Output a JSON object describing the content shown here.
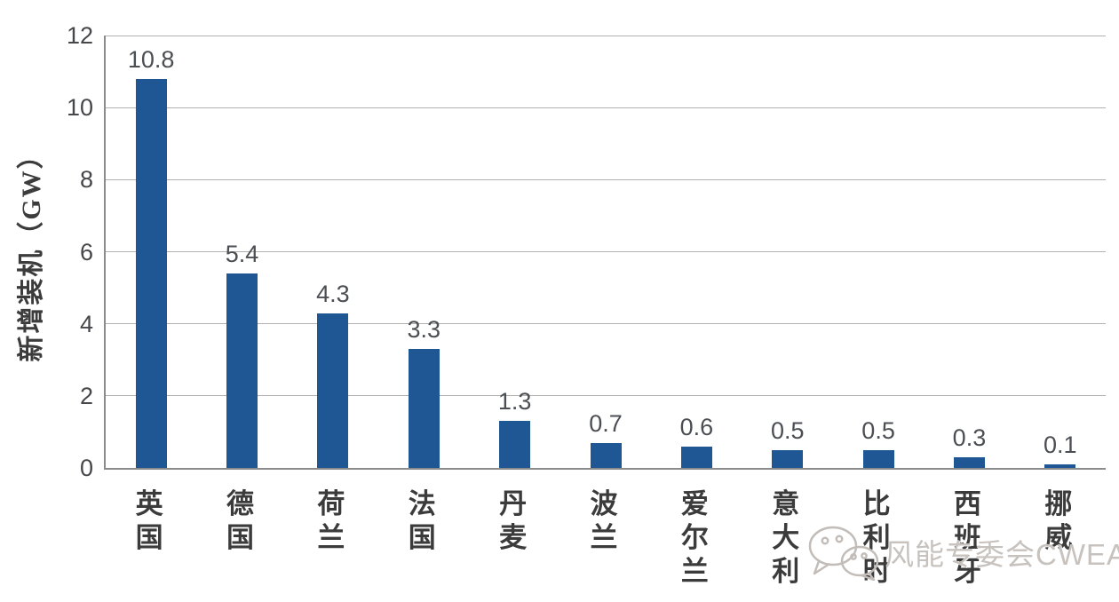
{
  "chart_data": {
    "type": "bar",
    "title": "",
    "xlabel": "",
    "ylabel": "新增装机（GW）",
    "ylim": [
      0,
      12
    ],
    "yticks": [
      0,
      2,
      4,
      6,
      8,
      10,
      12
    ],
    "grid": true,
    "legend": null,
    "categories": [
      "英国",
      "德国",
      "荷兰",
      "法国",
      "丹麦",
      "波兰",
      "爱尔兰",
      "意大利",
      "比利时",
      "西班牙",
      "挪威"
    ],
    "values": [
      10.8,
      5.4,
      4.3,
      3.3,
      1.3,
      0.7,
      0.6,
      0.5,
      0.5,
      0.3,
      0.1
    ],
    "value_labels": [
      "10.8",
      "5.4",
      "4.3",
      "3.3",
      "1.3",
      "0.7",
      "0.6",
      "0.5",
      "0.5",
      "0.3",
      "0.1"
    ],
    "bar_color": "#1f5795"
  },
  "watermark": {
    "text": "风能专委会CWEA",
    "icon": "wechat-icon",
    "color": "#c7c2bd"
  }
}
